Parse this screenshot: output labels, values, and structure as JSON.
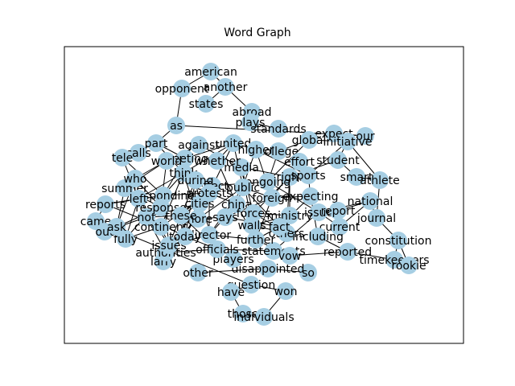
{
  "figure": {
    "title": "Word Graph"
  },
  "chart_data": {
    "type": "network",
    "title": "Word Graph",
    "node_color": "#a6cee3",
    "edge_color": "#000000",
    "nodes": [
      "american",
      "another",
      "opponent",
      "states",
      "abroad",
      "plays",
      "as",
      "standards",
      "expect",
      "our",
      "global",
      "initiative",
      "student",
      "part",
      "calls",
      "tele",
      "against",
      "united",
      "college",
      "higher",
      "smart",
      "athlete",
      "national",
      "journal",
      "constitution",
      "timekeepers",
      "rookie",
      "reported",
      "question",
      "came",
      "out",
      "fully",
      "larry",
      "other",
      "authorities",
      "have",
      "those",
      "individuals",
      "won",
      "so",
      "disappointed",
      "players",
      "statements",
      "issues",
      "summer",
      "china",
      "not",
      "reports",
      "who",
      "responding",
      "effect",
      "expecting",
      "walls",
      "director",
      "current",
      "further",
      "others",
      "more",
      "issue",
      "think",
      "media",
      "continent",
      "cities",
      "whether",
      "right",
      "foreign",
      "today",
      "meeting",
      "ministry",
      "including",
      "report",
      "says",
      "world",
      "left",
      "ongoing",
      "effort",
      "response",
      "sports",
      "during",
      "public",
      "ask",
      "fact",
      "officials",
      "protests",
      "forces",
      "vow",
      "these"
    ],
    "edges": [
      [
        "american",
        "opponent"
      ],
      [
        "american",
        "another"
      ],
      [
        "opponent",
        "as"
      ],
      [
        "another",
        "states"
      ],
      [
        "another",
        "abroad"
      ],
      [
        "abroad",
        "plays"
      ],
      [
        "as",
        "part"
      ],
      [
        "as",
        "our"
      ],
      [
        "plays",
        "standards"
      ],
      [
        "expect",
        "our"
      ],
      [
        "global",
        "initiative"
      ],
      [
        "student",
        "initiative"
      ],
      [
        "smart",
        "athlete"
      ],
      [
        "national",
        "journal"
      ],
      [
        "journal",
        "constitution"
      ],
      [
        "constitution",
        "rookie"
      ],
      [
        "constitution",
        "timekeepers"
      ],
      [
        "timekeepers",
        "reported"
      ],
      [
        "question",
        "have"
      ],
      [
        "question",
        "won"
      ],
      [
        "won",
        "individuals"
      ],
      [
        "have",
        "those"
      ],
      [
        "those",
        "individuals"
      ],
      [
        "larry",
        "authorities"
      ],
      [
        "other",
        "disappointed"
      ],
      [
        "came",
        "out"
      ],
      [
        "out",
        "fully"
      ],
      [
        "question",
        "came"
      ],
      [
        "so",
        "disappointed"
      ]
    ]
  }
}
